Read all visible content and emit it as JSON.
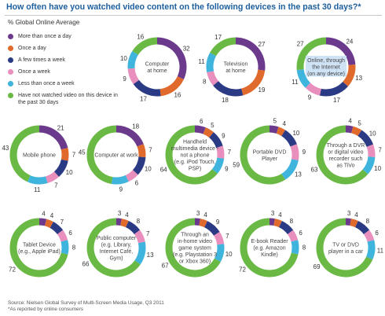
{
  "title": "How often have you watched video content on the following devices in the past 30 days?*",
  "subtitle": "% Global Online Average",
  "legend": [
    {
      "label": "More than once a day",
      "color": "#6b3a8c"
    },
    {
      "label": "Once a day",
      "color": "#e06a2b"
    },
    {
      "label": "A few times a week",
      "color": "#2b3a84"
    },
    {
      "label": "Once a week",
      "color": "#e98fbd"
    },
    {
      "label": "Less than once a week",
      "color": "#3fb4dd"
    },
    {
      "label": "Have not watched video on this device in the past 30 days",
      "color": "#6ab945"
    }
  ],
  "source": {
    "line1": "Source: Nielsen Global Survey of Multi-Screen Media Usage, Q3 2011",
    "line2": "*As reported by online consumers"
  },
  "chart_data": {
    "type": "pie",
    "series_order": [
      "More than once a day",
      "Once a day",
      "A few times a week",
      "Once a week",
      "Less than once a week",
      "Have not watched video on this device in the past 30 days"
    ],
    "charts": [
      {
        "label": "Computer at home",
        "values": [
          32,
          16,
          17,
          9,
          10,
          16
        ]
      },
      {
        "label": "Television at home",
        "values": [
          27,
          19,
          18,
          8,
          11,
          17
        ]
      },
      {
        "label": "Online, through the Internet (on any device)",
        "values": [
          24,
          13,
          17,
          9,
          11,
          27
        ]
      },
      {
        "label": "Mobile phone",
        "values": [
          21,
          7,
          10,
          7,
          11,
          43
        ]
      },
      {
        "label": "Computer at work",
        "values": [
          18,
          7,
          10,
          6,
          9,
          45
        ]
      },
      {
        "label": "Handheld multimedia device - not a phone (e.g. iPod Touch, PSP)",
        "values": [
          6,
          5,
          9,
          7,
          9,
          64
        ]
      },
      {
        "label": "Portable DVD Player",
        "values": [
          5,
          4,
          10,
          9,
          13,
          59
        ]
      },
      {
        "label": "Through a DVR or digital video recorder such as TiVo",
        "values": [
          4,
          5,
          10,
          7,
          10,
          63
        ]
      },
      {
        "label": "Tablet Device (e.g., Apple iPad)",
        "values": [
          4,
          4,
          7,
          6,
          8,
          72
        ]
      },
      {
        "label": "Public computer (e.g. Library, Internet Café, Gym)",
        "values": [
          3,
          4,
          8,
          7,
          13,
          66
        ]
      },
      {
        "label": "Through an in-home video game system (e.g. Playstation 3 or Xbox 360)",
        "values": [
          3,
          4,
          9,
          7,
          10,
          67
        ]
      },
      {
        "label": "E-book Reader (e.g. Amazon Kindle)",
        "values": [
          3,
          4,
          8,
          6,
          8,
          72
        ]
      },
      {
        "label": "TV or DVD player in a car",
        "values": [
          3,
          4,
          8,
          6,
          11,
          69
        ]
      }
    ]
  }
}
